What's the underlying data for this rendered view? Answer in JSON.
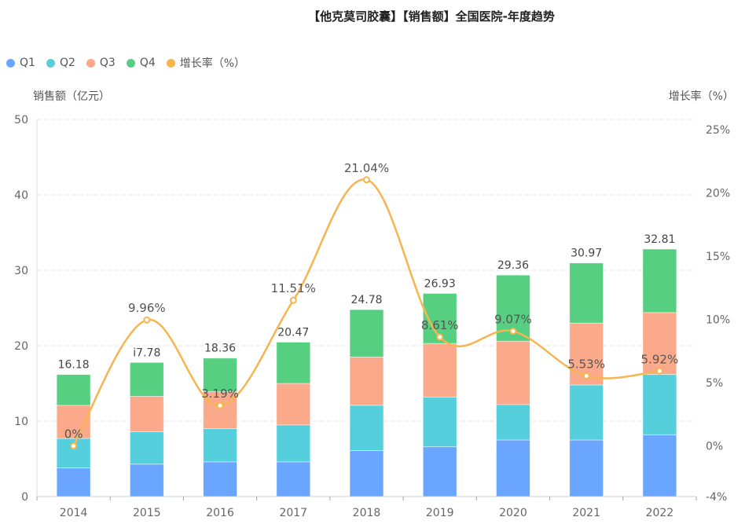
{
  "chart_data": {
    "type": "bar",
    "title": "【他克莫司胶囊】【销售额】全国医院-年度趋势",
    "categories": [
      "2014",
      "2015",
      "2016",
      "2017",
      "2018",
      "2019",
      "2020",
      "2021",
      "2022"
    ],
    "series": [
      {
        "name": "Q1",
        "color": "#6aa5ff",
        "values": [
          3.8,
          4.3,
          4.6,
          4.6,
          6.1,
          6.6,
          7.5,
          7.5,
          8.2
        ]
      },
      {
        "name": "Q2",
        "color": "#56cfdd",
        "values": [
          3.9,
          4.3,
          4.4,
          4.9,
          6.0,
          6.6,
          4.7,
          7.3,
          8.0
        ]
      },
      {
        "name": "Q3",
        "color": "#fba98b",
        "values": [
          4.4,
          4.7,
          4.9,
          5.5,
          6.4,
          7.1,
          8.4,
          8.2,
          8.2
        ]
      },
      {
        "name": "Q4",
        "color": "#57cf80",
        "values": [
          4.08,
          4.48,
          4.46,
          5.47,
          6.28,
          6.63,
          8.76,
          7.97,
          8.41
        ]
      }
    ],
    "totals": [
      16.18,
      17.78,
      18.36,
      20.47,
      24.78,
      26.93,
      29.36,
      30.97,
      32.81
    ],
    "total_labels": [
      "16.18",
      "i7.78",
      "18.36",
      "20.47",
      "24.78",
      "26.93",
      "29.36",
      "30.97",
      "32.81"
    ],
    "line_series": {
      "name": "增长率（%）",
      "color": "#f6b54f",
      "values": [
        0,
        9.96,
        3.19,
        11.51,
        21.04,
        8.61,
        9.07,
        5.53,
        5.92
      ],
      "labels": [
        "0%",
        "9.96%",
        "3.19%",
        "11.51%",
        "21.04%",
        "8.61%",
        "9.07%",
        "5.53%",
        "5.92%"
      ]
    },
    "xlabel": "",
    "ylabel": "销售额（亿元）",
    "ylabel_right": "增长率（%）",
    "ylim": [
      0,
      50
    ],
    "yticks": [
      0,
      10,
      20,
      30,
      40,
      50
    ],
    "ylim_right": [
      -4,
      25
    ],
    "yticks_right": [
      -4,
      0,
      5,
      10,
      15,
      20,
      25
    ],
    "yticks_right_labels": [
      "-4%",
      "0%",
      "5%",
      "10%",
      "15%",
      "20%",
      "25%"
    ],
    "grid": true,
    "legend_position": "top-left",
    "legend": [
      "Q1",
      "Q2",
      "Q3",
      "Q4",
      "增长率（%）"
    ]
  }
}
